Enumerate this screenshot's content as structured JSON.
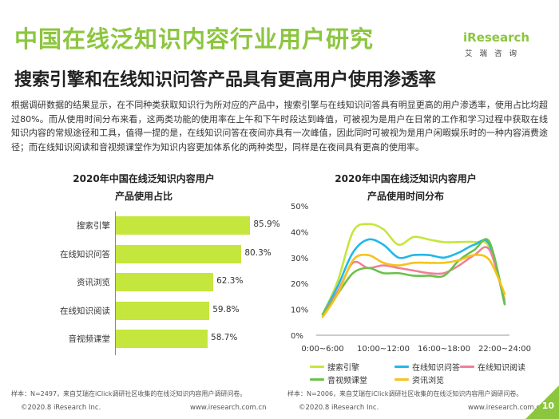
{
  "header": {
    "title": "中国在线泛知识内容行业用户研究",
    "subtitle": "搜索引擎和在线知识问答产品具有更高用户使用渗透率",
    "logo_text": "iResearch",
    "logo_sub": "艾瑞咨询"
  },
  "description": "根据调研数据的结果显示，在不同种类获取知识行为所对应的产品中，搜索引擎与在线知识问答具有明显更高的用户渗透率，使用占比均超过80%。而从使用时间分布来看，这两类功能的使用率在上午和下午时段达到峰值，可被视为是用户在日常的工作和学习过程中获取在线知识内容的常规途径和工具，值得一提的是，在线知识问答在夜间亦具有一次峰值，因此同时可被视为是用户闲暇娱乐时的一种内容消费途径；而在线知识阅读和音视频课堂作为知识内容更加体系化的两种类型，同样是在夜间具有更高的使用率。",
  "colors": {
    "brand": "#8cc63f",
    "bar": "#c5e63c"
  },
  "chart_data": [
    {
      "type": "bar",
      "orientation": "horizontal",
      "title_line1": "2020年中国在线泛知识内容用户",
      "title_line2": "产品使用占比",
      "categories": [
        "搜索引擎",
        "在线知识问答",
        "资讯浏览",
        "在线知识阅读",
        "音视频课堂"
      ],
      "values": [
        85.9,
        80.3,
        62.3,
        59.8,
        58.7
      ],
      "value_labels": [
        "85.9%",
        "80.3%",
        "62.3%",
        "59.8%",
        "58.7%"
      ],
      "xlim": [
        0,
        100
      ],
      "source": "样本：N=2497，来自艾瑞在iClick调研社区收集的在线泛知识内容用户调研问卷。"
    },
    {
      "type": "line",
      "title_line1": "2020年中国在线泛知识内容用户",
      "title_line2": "产品使用时间分布",
      "x": [
        0,
        1,
        2,
        3,
        4,
        5,
        6,
        7,
        8,
        9,
        10,
        11,
        12
      ],
      "xtick_positions": [
        0,
        4,
        8,
        12
      ],
      "xticks": [
        "0:00~6:00",
        "10:00~12:00",
        "16:00~18:00",
        "22:00~24:00"
      ],
      "yticks": [
        "0%",
        "10%",
        "20%",
        "30%",
        "40%",
        "50%"
      ],
      "ylim": [
        0,
        50
      ],
      "series": [
        {
          "name": "搜索引擎",
          "color": "#c5e63c",
          "values": [
            8,
            21,
            40,
            43,
            41,
            35,
            38,
            37,
            36,
            36,
            36,
            34,
            14
          ]
        },
        {
          "name": "在线知识问答",
          "color": "#22b8e8",
          "values": [
            8,
            19,
            32,
            37,
            35,
            30,
            31,
            31,
            30,
            32,
            35,
            35,
            12
          ]
        },
        {
          "name": "在线知识阅读",
          "color": "#f07f97",
          "values": [
            8,
            17,
            28,
            26,
            27,
            26,
            25,
            24,
            24,
            27,
            31,
            33,
            13
          ]
        },
        {
          "name": "音视频课堂",
          "color": "#6cc04a",
          "values": [
            8,
            16,
            24,
            26,
            24,
            24,
            23,
            23,
            23,
            29,
            33,
            36,
            12
          ]
        },
        {
          "name": "资讯浏览",
          "color": "#f5c31a",
          "values": [
            7,
            16,
            29,
            31,
            28,
            27,
            28,
            28,
            28,
            29,
            31,
            29,
            16
          ]
        }
      ],
      "source": "样本：N=2006，来自艾瑞在iClick调研社区收集的在线泛知识内容用户调研问卷。"
    }
  ],
  "footer": {
    "left1": "©2020.8 iResearch Inc.",
    "left2": "www.iresearch.com.cn",
    "right1": "©2020.8 iResearch Inc.",
    "right2": "www.iresearch.com.cn",
    "page": "10"
  }
}
